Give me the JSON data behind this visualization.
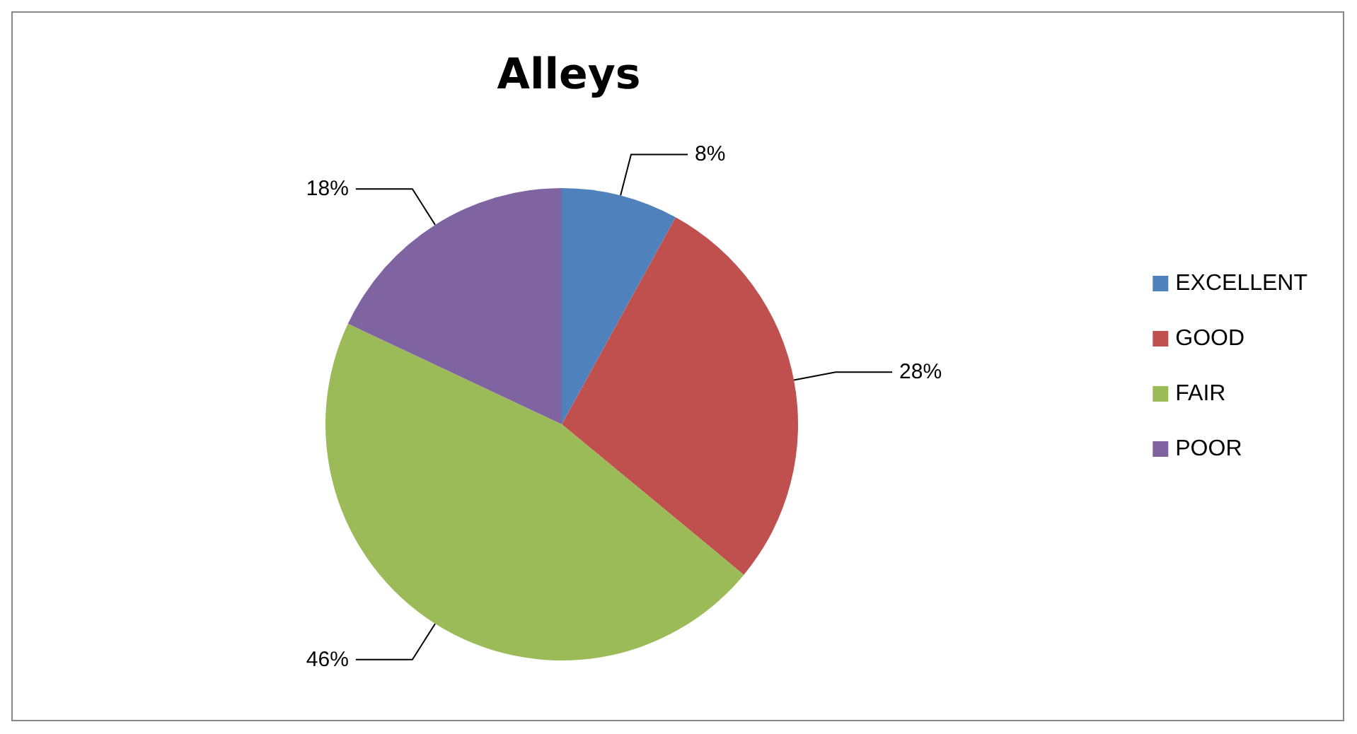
{
  "chart_data": {
    "type": "pie",
    "title": "Alleys",
    "categories": [
      "EXCELLENT",
      "GOOD",
      "FAIR",
      "POOR"
    ],
    "values": [
      8,
      28,
      46,
      18
    ],
    "colors": [
      "#4f81bd",
      "#c0504d",
      "#9bbb59",
      "#8064a2"
    ],
    "value_labels": [
      "8%",
      "28%",
      "46%",
      "18%"
    ],
    "legend": "right"
  }
}
